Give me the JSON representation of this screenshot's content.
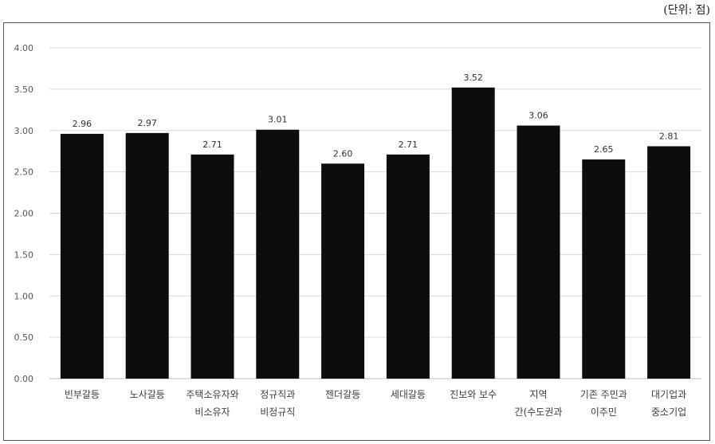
{
  "unit_label": "(단위: 점)",
  "chart_data": {
    "type": "bar",
    "categories": [
      [
        "빈부갈등"
      ],
      [
        "노사갈등"
      ],
      [
        "주택소유자와",
        "비소유자"
      ],
      [
        "정규직과",
        "비정규직"
      ],
      [
        "젠더갈등"
      ],
      [
        "세대갈등"
      ],
      [
        "진보와 보수"
      ],
      [
        "지역",
        "간(수도권과"
      ],
      [
        "기존 주민과",
        "이주민"
      ],
      [
        "대기업과",
        "중소기업"
      ]
    ],
    "values": [
      2.96,
      2.97,
      2.71,
      3.01,
      2.6,
      2.71,
      3.52,
      3.06,
      2.65,
      2.81
    ],
    "value_labels": [
      "2.96",
      "2.97",
      "2.71",
      "3.01",
      "2.60",
      "2.71",
      "3.52",
      "3.06",
      "2.65",
      "2.81"
    ],
    "ylim": [
      0,
      4
    ],
    "yticks": [
      "0.00",
      "0.50",
      "1.00",
      "1.50",
      "2.00",
      "2.50",
      "3.00",
      "3.50",
      "4.00"
    ],
    "grid": true,
    "colors": {
      "bar": "#0d0d0d",
      "grid": "#d9d9d9",
      "axis": "#bfbfbf"
    }
  }
}
